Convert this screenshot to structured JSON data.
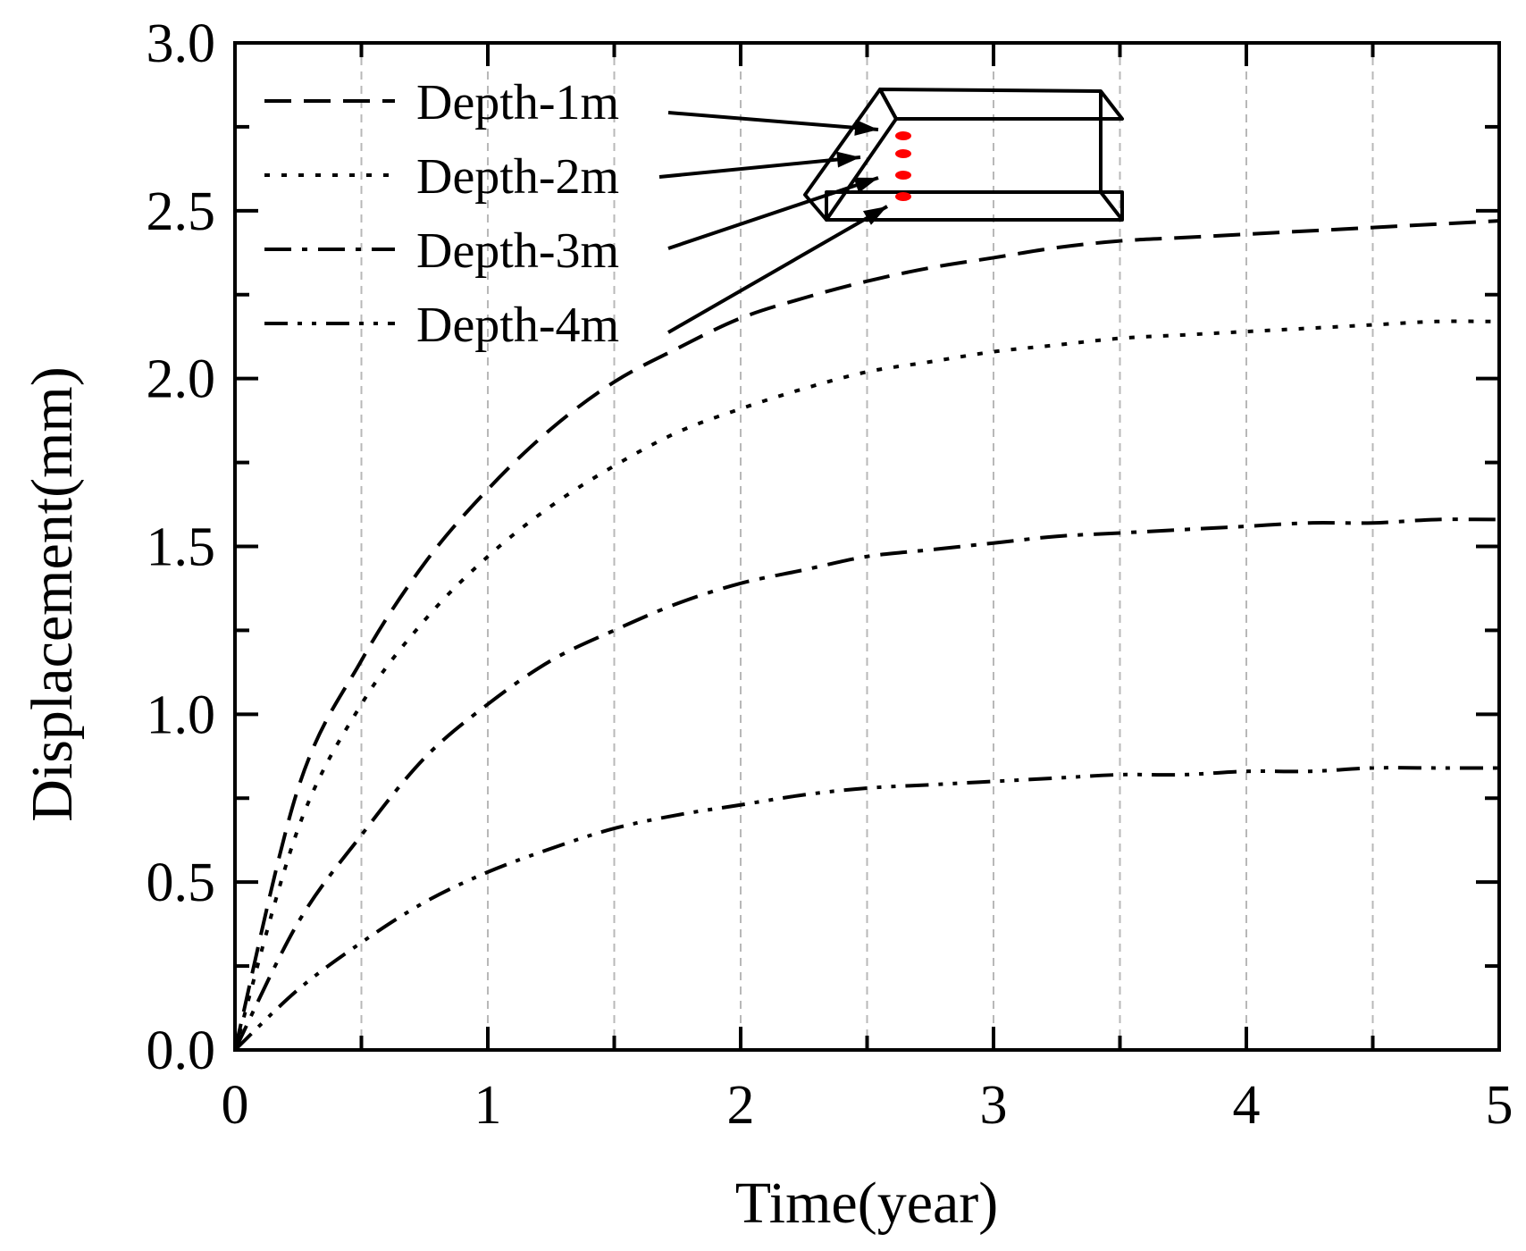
{
  "chart_data": {
    "type": "line",
    "title": "",
    "xlabel": "Time(year)",
    "ylabel": "Displacement(mm)",
    "xlim": [
      0,
      5
    ],
    "ylim": [
      0,
      3.0
    ],
    "x_ticks": [
      "0",
      "1",
      "2",
      "3",
      "4",
      "5"
    ],
    "x_tick_values": [
      0,
      1,
      2,
      3,
      4,
      5
    ],
    "y_ticks": [
      "0.0",
      "0.5",
      "1.0",
      "1.5",
      "2.0",
      "2.5",
      "3.0"
    ],
    "y_tick_values": [
      0,
      0.5,
      1.0,
      1.5,
      2.0,
      2.5,
      3.0
    ],
    "grid": "vertical dashed at every 0.5 year",
    "legend_position": "top-left",
    "x": [
      0,
      0.25,
      0.5,
      0.75,
      1.0,
      1.25,
      1.5,
      1.75,
      2.0,
      2.25,
      2.5,
      2.75,
      3.0,
      3.25,
      3.5,
      3.75,
      4.0,
      4.25,
      4.5,
      4.75,
      5.0
    ],
    "series": [
      {
        "name": "Depth-1m",
        "style": "dashed",
        "values": [
          0,
          0.78,
          1.16,
          1.45,
          1.67,
          1.85,
          1.99,
          2.09,
          2.18,
          2.24,
          2.29,
          2.33,
          2.36,
          2.39,
          2.41,
          2.42,
          2.43,
          2.44,
          2.45,
          2.46,
          2.47
        ]
      },
      {
        "name": "Depth-2m",
        "style": "dotted",
        "values": [
          0,
          0.66,
          1.03,
          1.28,
          1.47,
          1.62,
          1.74,
          1.84,
          1.91,
          1.97,
          2.02,
          2.05,
          2.08,
          2.1,
          2.12,
          2.13,
          2.14,
          2.15,
          2.16,
          2.17,
          2.17
        ]
      },
      {
        "name": "Depth-3m",
        "style": "dash-dot",
        "values": [
          0,
          0.38,
          0.64,
          0.87,
          1.03,
          1.16,
          1.25,
          1.33,
          1.39,
          1.43,
          1.47,
          1.49,
          1.51,
          1.53,
          1.54,
          1.55,
          1.56,
          1.57,
          1.57,
          1.58,
          1.58
        ]
      },
      {
        "name": "Depth-4m",
        "style": "dash-dot-dot",
        "values": [
          0,
          0.18,
          0.32,
          0.44,
          0.53,
          0.6,
          0.66,
          0.7,
          0.73,
          0.76,
          0.78,
          0.79,
          0.8,
          0.81,
          0.82,
          0.82,
          0.83,
          0.83,
          0.84,
          0.84,
          0.84
        ]
      }
    ],
    "inset": {
      "description": "3D box sketch with four red measurement points at depths 1m-4m, arrows from legend labels",
      "marker_color": "#ff0000"
    }
  }
}
